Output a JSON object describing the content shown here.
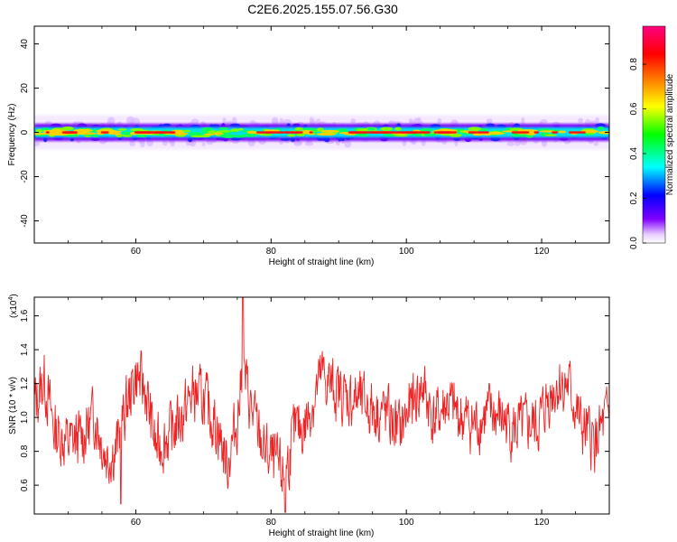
{
  "title": "C2E6.2025.155.07.56.G30",
  "chart_data": [
    {
      "type": "heatmap",
      "xlabel": "Height of straight line (km)",
      "ylabel": "Frequency (Hz)",
      "xlim": [
        45,
        130
      ],
      "ylim": [
        -50,
        48
      ],
      "xticks": [
        60,
        80,
        100,
        120
      ],
      "xtick_labels": [
        "60",
        "80",
        "100",
        "120"
      ],
      "yticks": [
        -40,
        -20,
        0,
        20,
        40
      ],
      "ytick_labels": [
        "-40",
        "-20",
        "0",
        "20",
        "40"
      ],
      "band_center_hz": 0,
      "band_halfwidth_hz": 3,
      "colorbar": {
        "label": "Normalized spectral amplitude",
        "range": [
          0,
          0.97
        ],
        "ticks": [
          0.0,
          0.2,
          0.4,
          0.6,
          0.8
        ],
        "tick_labels": [
          "0.0",
          "0.2",
          "0.4",
          "0.6",
          "0.8"
        ],
        "colors": [
          "#ffffff",
          "#e0c0ff",
          "#8000ff",
          "#0000ff",
          "#00ffff",
          "#00ff00",
          "#ffff00",
          "#ff8000",
          "#ff0000",
          "#ff0080"
        ]
      }
    },
    {
      "type": "line",
      "xlabel": "Height of straight line (km)",
      "ylabel": "SNR (10 * v/v)",
      "scale_label": "(x10",
      "scale_exp": "4",
      "scale_close": ")",
      "xlim": [
        45,
        130
      ],
      "ylim": [
        0.43,
        1.71
      ],
      "xticks": [
        60,
        80,
        100,
        120
      ],
      "xtick_labels": [
        "60",
        "80",
        "100",
        "120"
      ],
      "yticks": [
        0.6,
        0.8,
        1.0,
        1.2,
        1.4,
        1.6
      ],
      "ytick_labels": [
        "0.6",
        "0.8",
        "1.0",
        "1.2",
        "1.4",
        "1.6"
      ],
      "color": "#ee2222",
      "x": [
        45,
        46.5,
        48,
        50,
        52,
        54,
        55.5,
        57,
        58.5,
        60,
        61.5,
        63,
        65,
        67,
        68.5,
        70,
        72,
        73.5,
        75,
        75.8,
        77,
        79,
        81,
        82,
        83.5,
        85,
        87.5,
        89,
        91,
        93,
        95,
        97,
        99,
        100.5,
        102.5,
        104,
        106,
        108,
        110,
        112,
        114,
        116,
        118,
        119.5,
        121,
        122.5,
        124,
        126,
        128,
        130
      ],
      "y": [
        1.08,
        1.22,
        0.92,
        0.85,
        0.88,
        1.02,
        0.78,
        0.8,
        1.05,
        1.25,
        1.15,
        0.82,
        0.9,
        1.02,
        1.15,
        1.1,
        0.95,
        0.72,
        0.98,
        1.3,
        1.05,
        0.8,
        0.7,
        0.65,
        0.92,
        0.95,
        1.25,
        1.18,
        1.12,
        1.1,
        1.05,
        1.02,
        0.92,
        1.05,
        1.18,
        0.98,
        1.08,
        1.0,
        0.95,
        1.02,
        1.0,
        0.92,
        0.95,
        0.95,
        1.12,
        1.2,
        1.18,
        0.92,
        0.85,
        1.02
      ]
    }
  ]
}
